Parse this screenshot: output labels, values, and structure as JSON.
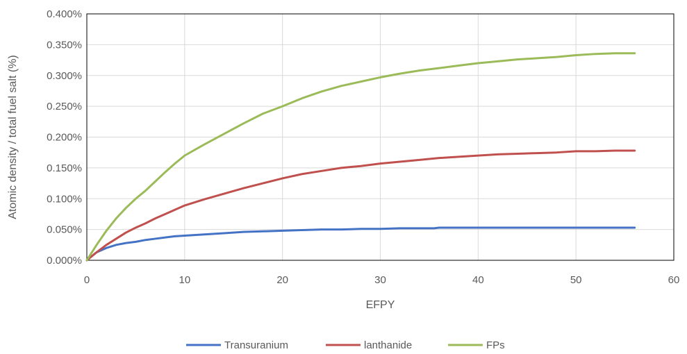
{
  "chart_data": {
    "type": "line",
    "title": "",
    "xlabel": "EFPY",
    "ylabel": "Atomic density / total fuel salt (%)",
    "xlim": [
      0,
      60
    ],
    "ylim": [
      0,
      0.004
    ],
    "x_ticks": [
      "0",
      "10",
      "20",
      "30",
      "40",
      "50",
      "60"
    ],
    "y_ticks": [
      "0.000%",
      "0.050%",
      "0.100%",
      "0.150%",
      "0.200%",
      "0.250%",
      "0.300%",
      "0.350%",
      "0.400%"
    ],
    "grid": true,
    "legend_position": "bottom",
    "series": [
      {
        "name": "Transuranium",
        "color": "#4472c4",
        "x": [
          0,
          1,
          2,
          3,
          4,
          5,
          6,
          7,
          8,
          9,
          10,
          12,
          14,
          16,
          18,
          20,
          22,
          24,
          26,
          28,
          30,
          32,
          34,
          35.5,
          36,
          40,
          44,
          48,
          52,
          56
        ],
        "values": [
          0,
          0.00013,
          0.0002,
          0.00025,
          0.00028,
          0.0003,
          0.00033,
          0.00035,
          0.00037,
          0.00039,
          0.0004,
          0.00042,
          0.00044,
          0.00046,
          0.00047,
          0.00048,
          0.00049,
          0.0005,
          0.0005,
          0.00051,
          0.00051,
          0.00052,
          0.00052,
          0.00052,
          0.00053,
          0.00053,
          0.00053,
          0.00053,
          0.00053,
          0.00053
        ]
      },
      {
        "name": "lanthanide",
        "color": "#c0504d",
        "x": [
          0,
          1,
          2,
          3,
          4,
          5,
          6,
          7,
          8,
          9,
          10,
          12,
          14,
          16,
          18,
          20,
          22,
          24,
          26,
          28,
          30,
          32,
          34,
          36,
          38,
          40,
          42,
          44,
          46,
          48,
          50,
          52,
          54,
          56
        ],
        "values": [
          0,
          0.00013,
          0.00025,
          0.00035,
          0.00045,
          0.00053,
          0.0006,
          0.00068,
          0.00075,
          0.00082,
          0.00089,
          0.00099,
          0.00108,
          0.00117,
          0.00125,
          0.00133,
          0.0014,
          0.00145,
          0.0015,
          0.00153,
          0.00157,
          0.0016,
          0.00163,
          0.00166,
          0.00168,
          0.0017,
          0.00172,
          0.00173,
          0.00174,
          0.00175,
          0.00177,
          0.00177,
          0.00178,
          0.00178
        ]
      },
      {
        "name": "FPs",
        "color": "#9bbb59",
        "x": [
          0,
          1,
          2,
          3,
          4,
          5,
          6,
          7,
          8,
          9,
          10,
          12,
          14,
          16,
          18,
          20,
          22,
          24,
          26,
          28,
          30,
          32,
          34,
          36,
          38,
          40,
          42,
          44,
          46,
          48,
          50,
          52,
          54,
          56
        ],
        "values": [
          0,
          0.00025,
          0.00048,
          0.00068,
          0.00085,
          0.001,
          0.00113,
          0.00128,
          0.00143,
          0.00157,
          0.0017,
          0.00188,
          0.00205,
          0.00222,
          0.00238,
          0.0025,
          0.00263,
          0.00274,
          0.00283,
          0.0029,
          0.00297,
          0.00303,
          0.00308,
          0.00312,
          0.00316,
          0.0032,
          0.00323,
          0.00326,
          0.00328,
          0.0033,
          0.00333,
          0.00335,
          0.00336,
          0.00336
        ]
      }
    ]
  }
}
